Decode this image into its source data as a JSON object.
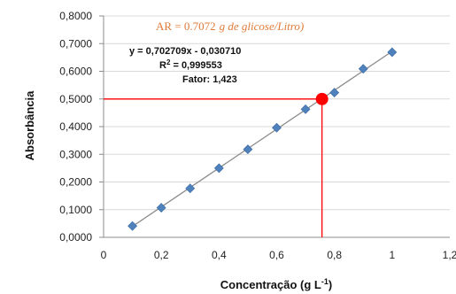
{
  "chart_data": {
    "type": "scatter",
    "xlabel": "Concentração (g L",
    "xlabel_sup": "-1",
    "xlabel_end": ")",
    "ylabel": "Absorbância",
    "xlim": [
      0,
      1.2
    ],
    "ylim": [
      0,
      0.8
    ],
    "x_ticks": [
      "0",
      "0,2",
      "0,4",
      "0,6",
      "0,8",
      "1",
      "1,2"
    ],
    "y_ticks": [
      "0,0000",
      "0,1000",
      "0,2000",
      "0,3000",
      "0,4000",
      "0,5000",
      "0,6000",
      "0,7000",
      "0,8000"
    ],
    "grid": "horizontal",
    "series": [
      {
        "x": [
          0.1,
          0.2,
          0.3,
          0.4,
          0.5,
          0.6,
          0.7,
          0.8,
          0.9,
          1.0
        ],
        "y": [
          0.041,
          0.107,
          0.177,
          0.25,
          0.318,
          0.396,
          0.463,
          0.523,
          0.609,
          0.669
        ]
      }
    ],
    "trendline": {
      "slope": 0.702709,
      "intercept": -0.03071,
      "x_range": [
        0.1,
        1.0
      ]
    },
    "highlight_point": {
      "x": 0.757,
      "y": 0.4998
    },
    "annotations": {
      "ar_prefix": "AR = ",
      "ar_value": "0.7072",
      "ar_units": "g de glicose/Litro)",
      "equation": "y = 0,702709x - 0,030710",
      "r2_prefix": "R",
      "r2_sup": "2",
      "r2_value": " = 0,999553",
      "factor": "Fator: 1,423"
    },
    "colors": {
      "marker": "#4f81bd",
      "trendline": "#8c8c8c",
      "highlight": "#ff0000",
      "annotation_text": "#e07b39",
      "grid": "#d9d9d9"
    }
  }
}
